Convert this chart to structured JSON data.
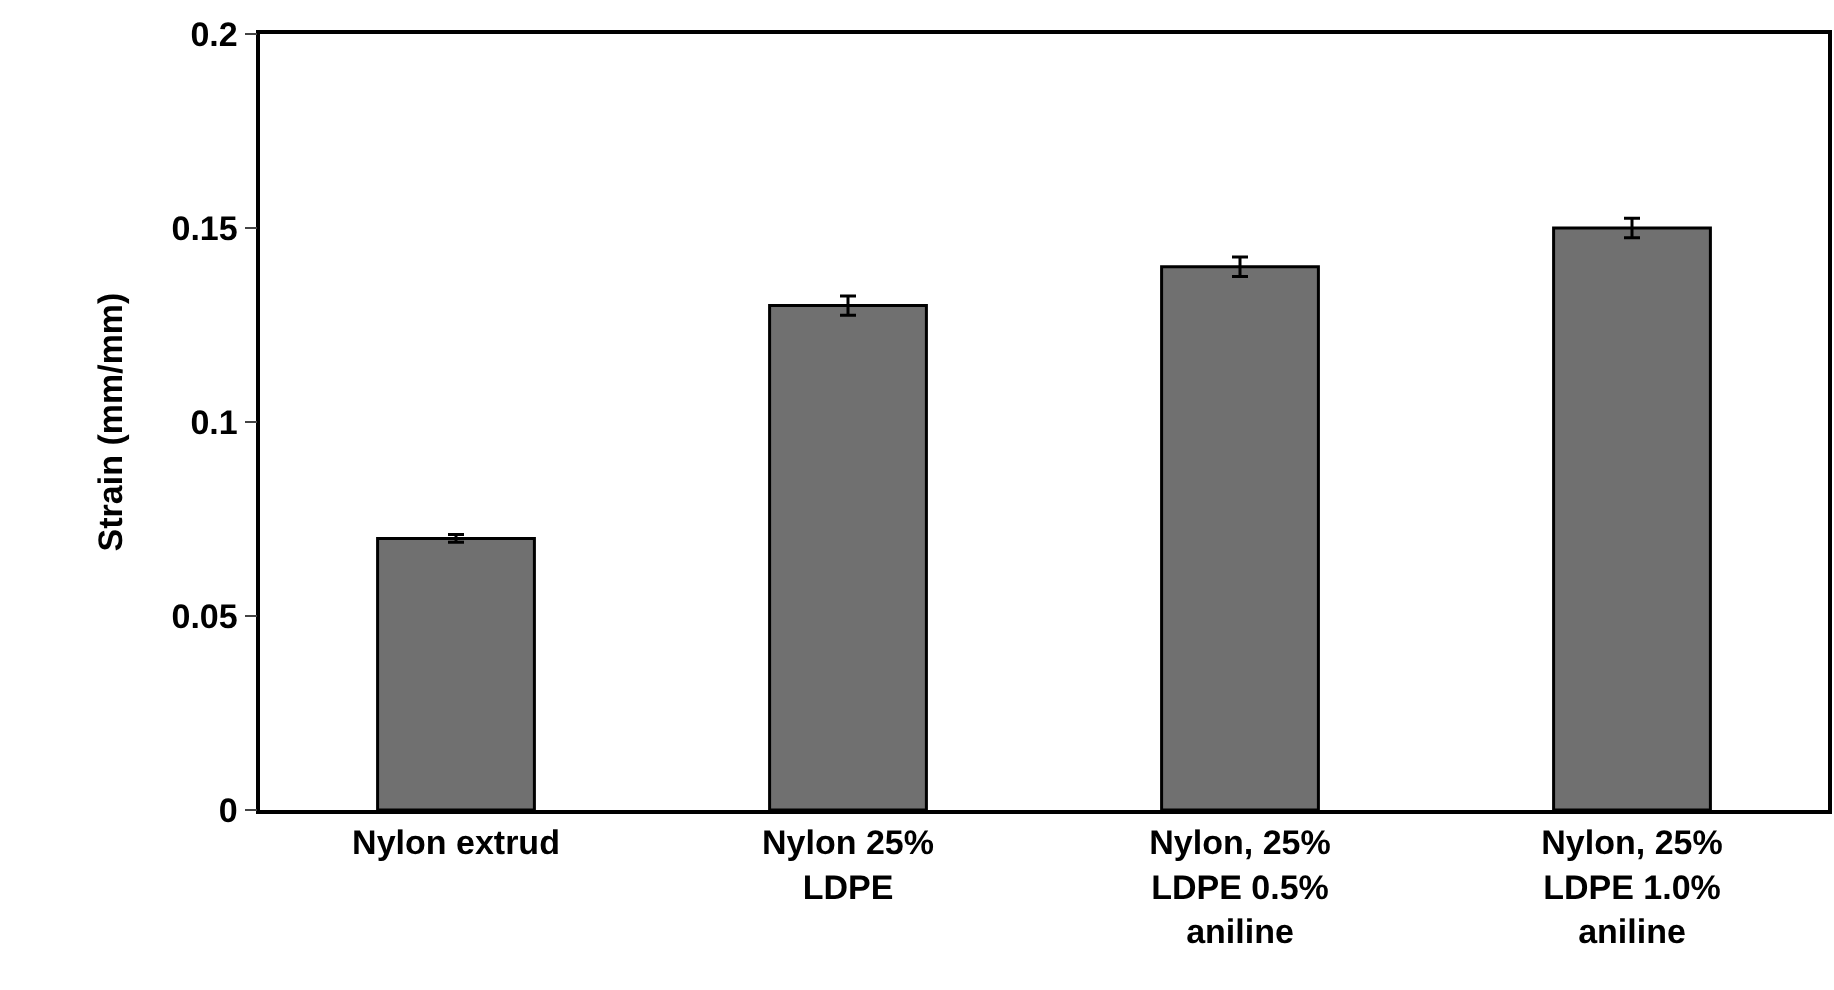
{
  "chart_data": {
    "type": "bar",
    "ylabel": "Strain (mm/mm)",
    "categories": [
      "Nylon extrud",
      "Nylon 25%\nLDPE",
      "Nylon, 25%\nLDPE 0.5%\naniline",
      "Nylon, 25%\nLDPE 1.0%\naniline"
    ],
    "values": [
      0.07,
      0.13,
      0.14,
      0.15
    ],
    "errors": [
      0.001,
      0.0025,
      0.0025,
      0.0025
    ],
    "color": "#707070",
    "ylim": [
      0,
      0.2
    ],
    "yticks": [
      0,
      0.05,
      0.1,
      0.15,
      0.2
    ],
    "grid": false
  }
}
